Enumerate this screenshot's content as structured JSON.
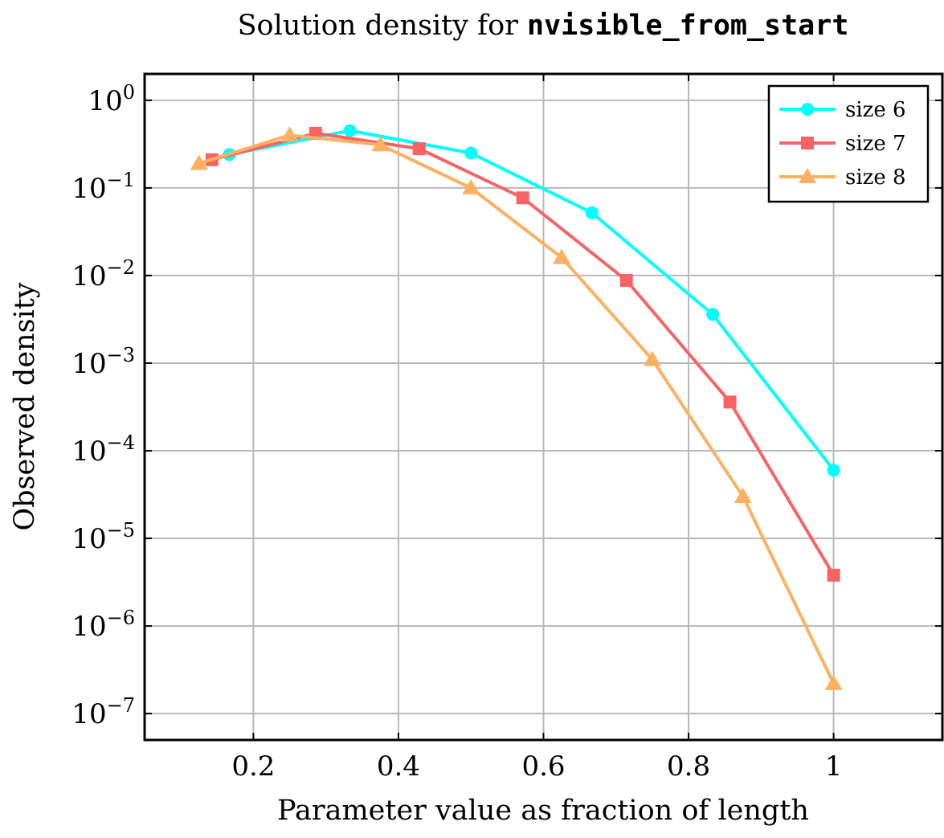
{
  "chart_data": {
    "type": "line",
    "title_prefix": "Solution density for ",
    "title_code": "nvisible_from_start",
    "xlabel": "Parameter value as fraction of length",
    "ylabel": "Observed density",
    "y_scale": "log",
    "xlim": [
      0.05,
      1.15
    ],
    "ylim": [
      5e-08,
      2
    ],
    "x_ticks": [
      0.2,
      0.4,
      0.6,
      0.8,
      1.0
    ],
    "x_tick_labels": [
      "0.2",
      "0.4",
      "0.6",
      "0.8",
      "1"
    ],
    "y_tick_exponents": [
      "0",
      "−1",
      "−2",
      "−3",
      "−4",
      "−5",
      "−6",
      "−7"
    ],
    "y_tick_values": [
      1,
      0.1,
      0.01,
      0.001,
      0.0001,
      1e-05,
      1e-06,
      1e-07
    ],
    "grid": true,
    "legend_position": "top-right",
    "series": [
      {
        "name": "size 6",
        "color": "#00ffff",
        "marker": "circle",
        "x": [
          0.1667,
          0.3333,
          0.5,
          0.6667,
          0.8333,
          1.0
        ],
        "y": [
          0.24,
          0.45,
          0.25,
          0.052,
          0.0036,
          6e-05
        ]
      },
      {
        "name": "size 7",
        "color": "#f86464",
        "marker": "square",
        "x": [
          0.1429,
          0.2857,
          0.4286,
          0.5714,
          0.7143,
          0.8571,
          1.0
        ],
        "y": [
          0.21,
          0.42,
          0.28,
          0.077,
          0.0088,
          0.00036,
          3.8e-06
        ]
      },
      {
        "name": "size 8",
        "color": "#ffb060",
        "marker": "triangle",
        "x": [
          0.125,
          0.25,
          0.375,
          0.5,
          0.625,
          0.75,
          0.875,
          1.0
        ],
        "y": [
          0.19,
          0.4,
          0.31,
          0.1,
          0.016,
          0.0011,
          3e-05,
          2.2e-07
        ]
      }
    ]
  }
}
